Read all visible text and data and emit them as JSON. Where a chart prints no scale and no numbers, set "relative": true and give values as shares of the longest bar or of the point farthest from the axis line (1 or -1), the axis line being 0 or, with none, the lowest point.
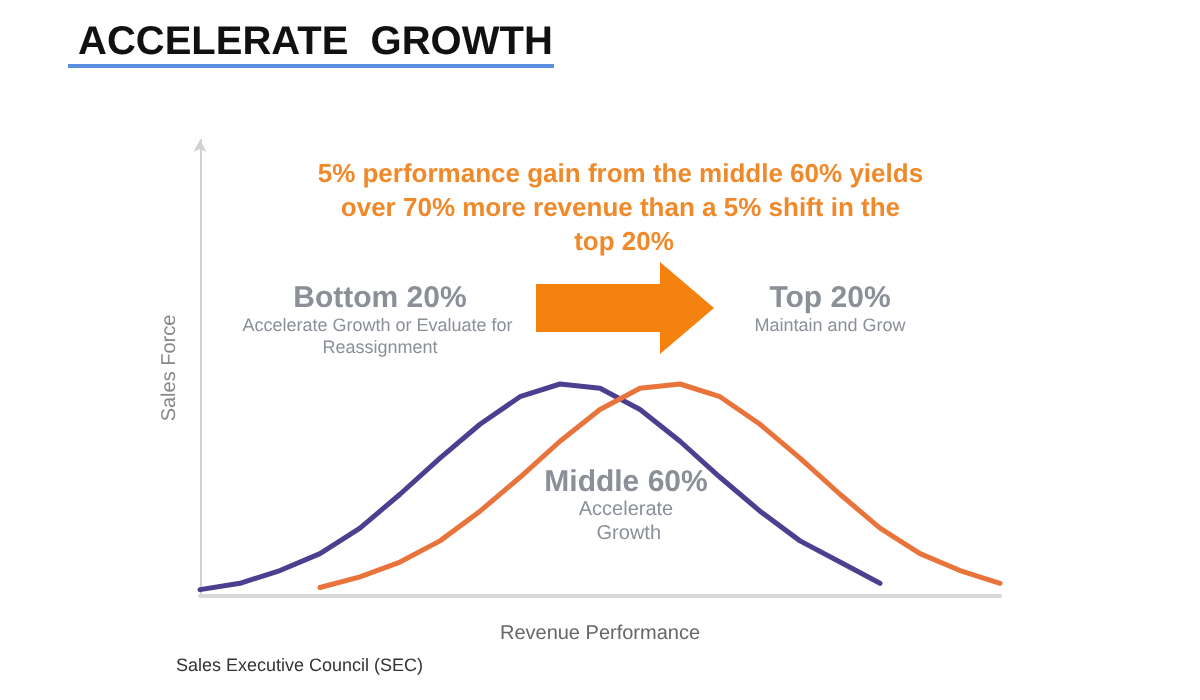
{
  "chart_data": {
    "type": "line",
    "title": "ACCELERATE  GROWTH",
    "xlabel": "Revenue Performance",
    "ylabel": "Sales Force",
    "relative": true,
    "marker": "none",
    "grid": false,
    "categories": [
      null,
      null,
      null,
      null,
      null,
      null,
      null,
      null,
      null,
      null,
      null,
      null,
      null,
      null,
      null,
      null,
      null,
      null,
      null,
      null,
      null
    ],
    "series": [
      {
        "color": "#4b3f8f",
        "values": [
          0.03,
          0.06,
          0.12,
          0.2,
          0.32,
          0.48,
          0.65,
          0.81,
          0.94,
          1.0,
          0.98,
          0.88,
          0.73,
          0.56,
          0.4,
          0.26,
          0.16,
          0.06,
          null,
          null,
          null
        ]
      },
      {
        "color": "#e8743b",
        "values": [
          null,
          null,
          null,
          0.04,
          0.09,
          0.16,
          0.26,
          0.4,
          0.56,
          0.73,
          0.88,
          0.98,
          1.0,
          0.94,
          0.81,
          0.65,
          0.48,
          0.32,
          0.2,
          0.12,
          0.06
        ]
      }
    ],
    "annotations": [
      "5% performance gain from the middle 60% yields over 70% more revenue than a 5% shift in the top 20%",
      "Bottom 20%",
      "Accelerate Growth or Evaluate for Reassignment",
      "Top 20%",
      "Maintain and Grow",
      "Middle 60%",
      "Accelerate Growth",
      "Sales Executive Council (SEC)"
    ]
  }
}
